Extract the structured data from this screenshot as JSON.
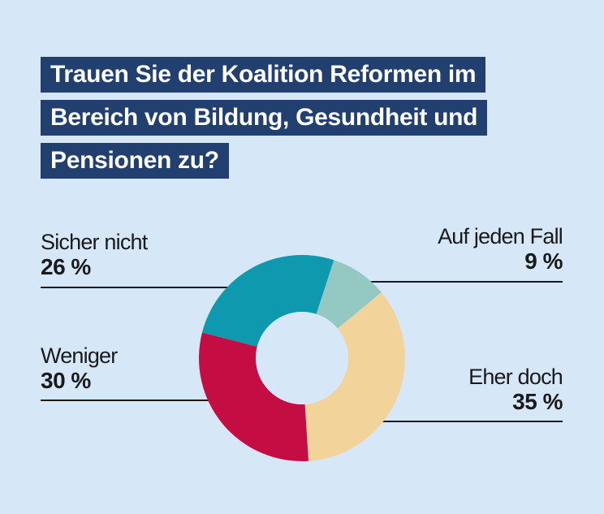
{
  "chart_data": {
    "type": "pie",
    "variant": "donut",
    "title_lines": [
      "Trauen Sie der Koalition Reformen im",
      "Bereich von Bildung, Gesundheit und",
      "Pensionen zu?"
    ],
    "slices": [
      {
        "label": "Auf jeden Fall",
        "value": 9,
        "display": "9 %",
        "color": "#94c8c2"
      },
      {
        "label": "Eher doch",
        "value": 35,
        "display": "35 %",
        "color": "#f2d49a"
      },
      {
        "label": "Weniger",
        "value": 30,
        "display": "30 %",
        "color": "#c40e43"
      },
      {
        "label": "Sicher nicht",
        "value": 26,
        "display": "26 %",
        "color": "#0e99ae"
      }
    ],
    "unit": "%"
  },
  "colors": {
    "background": "#d6e8f8",
    "title_bg": "#22406f",
    "title_text": "#ffffff",
    "leader_line": "#1a1a1a"
  }
}
